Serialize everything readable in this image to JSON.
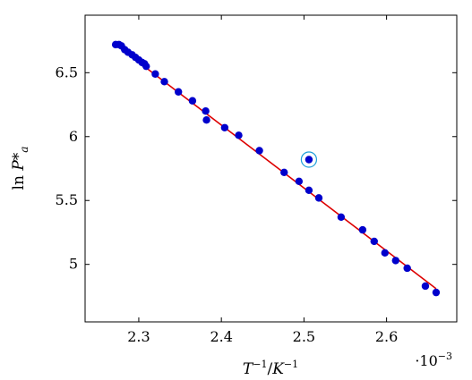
{
  "chart_data": {
    "type": "scatter",
    "title": "",
    "xlabel": "T^{-1}/K^{-1}",
    "ylabel": "ln P*_a",
    "x_scale_label": "·10⁻³",
    "xlim": [
      2.235,
      2.685
    ],
    "ylim": [
      4.55,
      6.95
    ],
    "x_ticks": [
      2.3,
      2.4,
      2.5,
      2.6
    ],
    "y_ticks": [
      5,
      5.5,
      6,
      6.5
    ],
    "x_tick_labels": [
      "2.3",
      "2.4",
      "2.5",
      "2.6"
    ],
    "y_tick_labels": [
      "5",
      "5.5",
      "6",
      "6.5"
    ],
    "grid": false,
    "legend": "none",
    "colors": {
      "points": "#0000cc",
      "fit_line": "#dd0000",
      "outlier_ring": "#1f9fd9"
    },
    "points": {
      "x": [
        2.272,
        2.276,
        2.279,
        2.283,
        2.287,
        2.292,
        2.296,
        2.3,
        2.304,
        2.307,
        2.309,
        2.32,
        2.331,
        2.348,
        2.365,
        2.381,
        2.382,
        2.404,
        2.421,
        2.446,
        2.476,
        2.494,
        2.506,
        2.518,
        2.545,
        2.571,
        2.585,
        2.598,
        2.611,
        2.625,
        2.647,
        2.66
      ],
      "y": [
        6.72,
        6.72,
        6.71,
        6.68,
        6.66,
        6.64,
        6.62,
        6.6,
        6.58,
        6.57,
        6.55,
        6.49,
        6.43,
        6.35,
        6.28,
        6.2,
        6.13,
        6.07,
        6.01,
        5.89,
        5.72,
        5.65,
        5.58,
        5.52,
        5.37,
        5.27,
        5.18,
        5.09,
        5.03,
        4.97,
        4.83,
        4.78
      ]
    },
    "outlier": {
      "x": 2.506,
      "y": 5.82
    },
    "fit_line": {
      "x": [
        2.272,
        2.66
      ],
      "y": [
        6.72,
        4.81
      ]
    }
  }
}
